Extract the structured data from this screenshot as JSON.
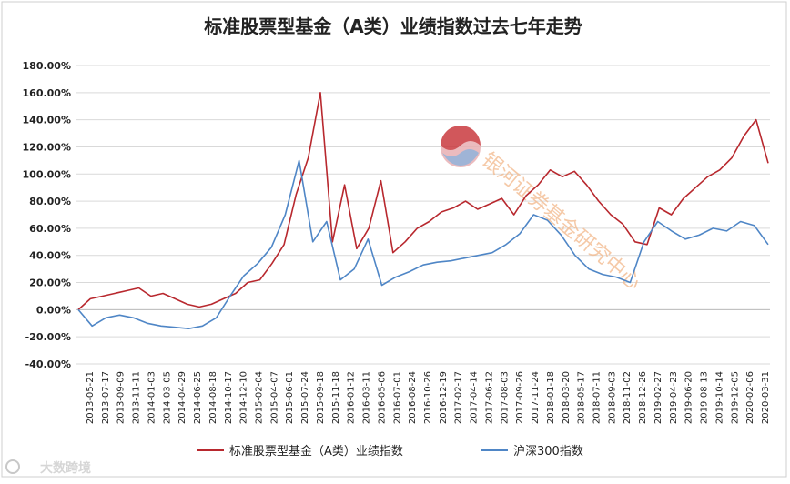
{
  "chart_data": {
    "type": "line",
    "title": "标准股票型基金（A类）业绩指数过去七年走势",
    "xlabel": "",
    "ylabel": "",
    "ylim": [
      -40,
      180
    ],
    "ytick_step": 20,
    "yticks": [
      "-40.00%",
      "-20.00%",
      "0.00%",
      "20.00%",
      "40.00%",
      "60.00%",
      "80.00%",
      "100.00%",
      "120.00%",
      "140.00%",
      "160.00%",
      "180.00%"
    ],
    "xticks": [
      "2013-05-21",
      "2013-07-17",
      "2013-09-09",
      "2013-11-11",
      "2014-01-03",
      "2014-03-05",
      "2014-04-29",
      "2014-06-25",
      "2014-08-18",
      "2014-10-17",
      "2014-12-10",
      "2015-02-04",
      "2015-04-07",
      "2015-06-01",
      "2015-07-24",
      "2015-09-18",
      "2015-11-18",
      "2016-01-12",
      "2016-03-11",
      "2016-05-06",
      "2016-07-01",
      "2016-08-24",
      "2016-10-26",
      "2016-12-19",
      "2017-02-17",
      "2017-04-14",
      "2017-06-12",
      "2017-08-03",
      "2017-09-26",
      "2017-11-24",
      "2018-01-18",
      "2018-03-20",
      "2018-05-17",
      "2018-07-11",
      "2018-09-03",
      "2018-11-02",
      "2018-12-26",
      "2019-02-27",
      "2019-04-23",
      "2019-06-20",
      "2019-08-13",
      "2019-10-14",
      "2019-12-05",
      "2020-02-06",
      "2020-03-31"
    ],
    "grid": true,
    "legend_position": "bottom",
    "series": [
      {
        "name": "标准股票型基金（A类）业绩指数",
        "color": "#b8282e",
        "values": [
          0,
          8,
          10,
          12,
          14,
          16,
          10,
          12,
          8,
          4,
          2,
          4,
          8,
          12,
          20,
          22,
          34,
          48,
          85,
          112,
          160,
          50,
          92,
          45,
          60,
          95,
          42,
          50,
          60,
          65,
          72,
          75,
          80,
          74,
          78,
          82,
          70,
          84,
          92,
          103,
          98,
          102,
          92,
          80,
          70,
          63,
          50,
          48,
          75,
          70,
          82,
          90,
          98,
          103,
          112,
          128,
          140,
          108
        ]
      },
      {
        "name": "沪深300指数",
        "color": "#4f86c6",
        "values": [
          0,
          -12,
          -6,
          -4,
          -6,
          -10,
          -12,
          -13,
          -14,
          -12,
          -6,
          10,
          25,
          34,
          46,
          70,
          110,
          50,
          65,
          22,
          30,
          52,
          18,
          24,
          28,
          33,
          35,
          36,
          38,
          40,
          42,
          48,
          56,
          70,
          66,
          55,
          40,
          30,
          26,
          24,
          20,
          50,
          65,
          58,
          52,
          55,
          60,
          58,
          65,
          62,
          48
        ]
      }
    ]
  },
  "watermark": {
    "text": "银河证券基金研究中心",
    "logo": "galaxy-securities-logo"
  },
  "corner_watermark": "大数跨境"
}
